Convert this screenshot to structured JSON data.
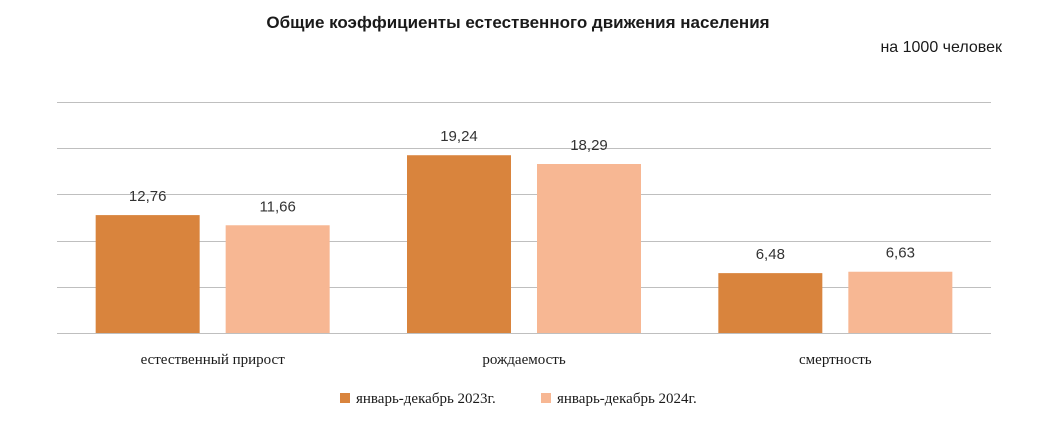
{
  "chart_data": {
    "type": "bar",
    "title": "Общие коэффициенты естественного движения  населения",
    "unit_label": "на 1000 человек",
    "categories": [
      "естественный прирост",
      "рождаемость",
      "смертность"
    ],
    "series": [
      {
        "name": "январь-декабрь  2023г.",
        "values": [
          12.76,
          19.24,
          6.48
        ],
        "labels": [
          "12,76",
          "19,24",
          "6,48"
        ],
        "color": "#d9843d"
      },
      {
        "name": "январь-декабрь  2024г.",
        "values": [
          11.66,
          18.29,
          6.63
        ],
        "labels": [
          "11,66",
          "18,29",
          "6,63"
        ],
        "color": "#f7b793"
      }
    ],
    "ylim": [
      0,
      25
    ],
    "grid": true,
    "legend_position": "bottom"
  }
}
